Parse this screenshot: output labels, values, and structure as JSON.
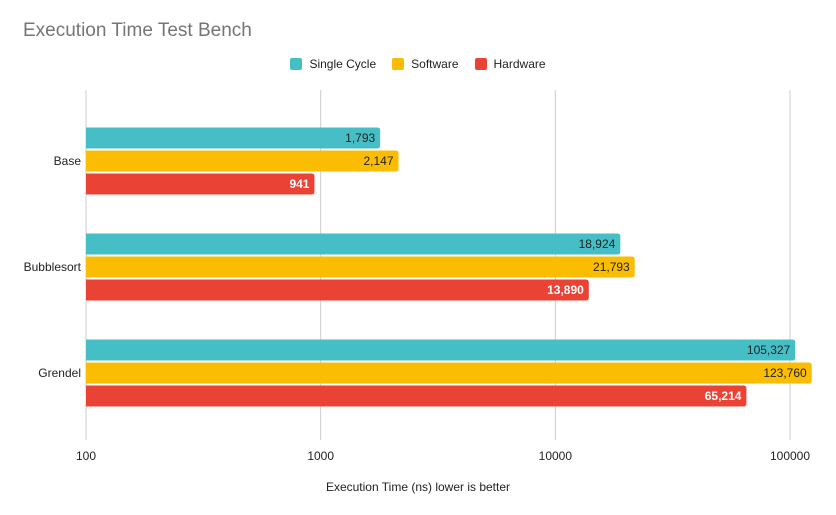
{
  "chart_data": {
    "type": "bar",
    "orientation": "horizontal",
    "title": "Execution Time Test Bench",
    "xlabel": "Execution Time (ns) lower is better",
    "ylabel": "",
    "x_scale": "log",
    "xlim": [
      100,
      100000
    ],
    "x_ticks": [
      100,
      1000,
      10000,
      100000
    ],
    "x_tick_labels": [
      "100",
      "1000",
      "10000",
      "100000"
    ],
    "categories": [
      "Base",
      "Bubblesort",
      "Grendel"
    ],
    "series": [
      {
        "name": "Single Cycle",
        "color": "#45bec6",
        "label_color": "#222222",
        "values": [
          1793,
          18924,
          105327
        ],
        "labels": [
          "1,793",
          "18,924",
          "105,327"
        ]
      },
      {
        "name": "Software",
        "color": "#fbbc04",
        "label_color": "#222222",
        "values": [
          2147,
          21793,
          123760
        ],
        "labels": [
          "2,147",
          "21,793",
          "123,760"
        ]
      },
      {
        "name": "Hardware",
        "color": "#ea4335",
        "label_color": "#ffffff",
        "values": [
          941,
          13890,
          65214
        ],
        "labels": [
          "941",
          "13,890",
          "65,214"
        ]
      }
    ],
    "legend_position": "top-center",
    "grid": true
  }
}
